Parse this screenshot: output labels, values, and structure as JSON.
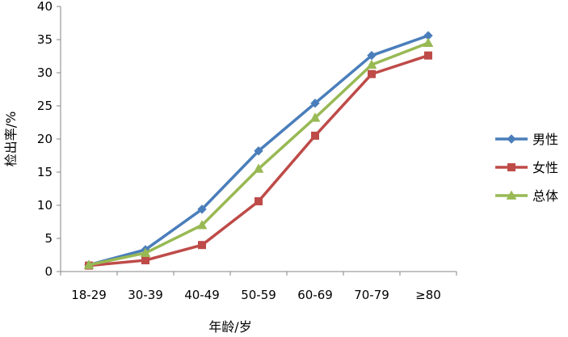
{
  "chart_data": {
    "type": "line",
    "title": "",
    "xlabel": "年龄/岁",
    "ylabel": "检出率/%",
    "categories": [
      "18-29",
      "30-39",
      "40-49",
      "50-59",
      "60-69",
      "70-79",
      "≥80"
    ],
    "ylim": [
      0,
      40
    ],
    "yticks": [
      0,
      5,
      10,
      15,
      20,
      25,
      30,
      35,
      40
    ],
    "grid": false,
    "legend_position": "right",
    "series": [
      {
        "name": "男性",
        "values": [
          1.0,
          3.3,
          9.4,
          18.2,
          25.4,
          32.6,
          35.6
        ],
        "color": "#4a7ebb",
        "marker": "diamond"
      },
      {
        "name": "女性",
        "values": [
          0.9,
          1.7,
          4.0,
          10.6,
          20.5,
          29.8,
          32.6
        ],
        "color": "#be4b48",
        "marker": "square"
      },
      {
        "name": "总体",
        "values": [
          1.0,
          2.8,
          7.0,
          15.5,
          23.2,
          31.2,
          34.5
        ],
        "color": "#98b954",
        "marker": "triangle"
      }
    ]
  }
}
